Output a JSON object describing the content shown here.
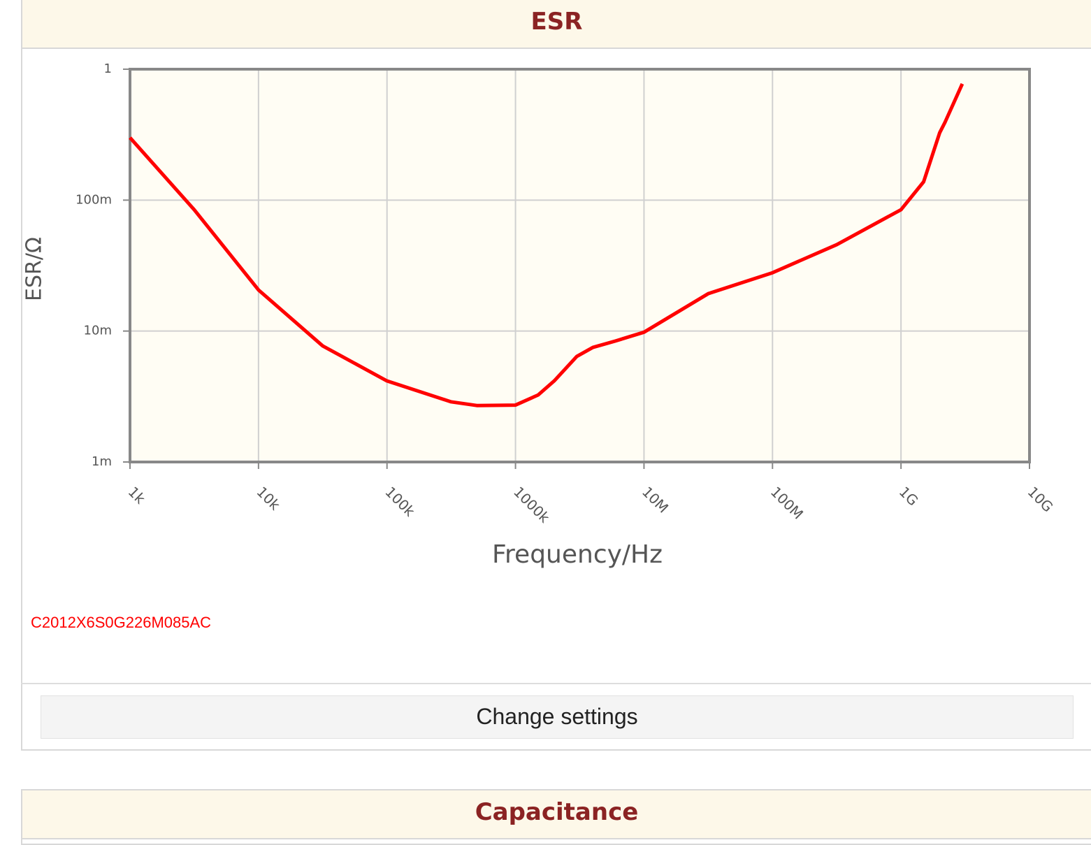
{
  "panel_title": "ESR",
  "chart_data": {
    "type": "line",
    "xlabel": "Frequency/Hz",
    "ylabel": "ESR/Ω",
    "xscale": "log",
    "yscale": "log",
    "grid": true,
    "xlim": [
      1000,
      10000000000
    ],
    "ylim": [
      0.001,
      1
    ],
    "xticks": [
      {
        "value": 1000,
        "label": "1k"
      },
      {
        "value": 10000,
        "label": "10k"
      },
      {
        "value": 100000,
        "label": "100k"
      },
      {
        "value": 1000000,
        "label": "1000k"
      },
      {
        "value": 10000000,
        "label": "10M"
      },
      {
        "value": 100000000,
        "label": "100M"
      },
      {
        "value": 1000000000,
        "label": "1G"
      },
      {
        "value": 10000000000,
        "label": "10G"
      }
    ],
    "yticks": [
      {
        "value": 0.001,
        "label": "1m"
      },
      {
        "value": 0.01,
        "label": "10m"
      },
      {
        "value": 0.1,
        "label": "100m"
      },
      1
    ],
    "x": [
      1000,
      3160,
      10000,
      31600,
      100000,
      316000,
      500000,
      1000000,
      1500000,
      2000000,
      3000000,
      4000000,
      6000000,
      10000000,
      31600000,
      100000000,
      316000000,
      1000000000,
      1500000000,
      2000000000,
      2200000000,
      3000000000
    ],
    "series": [
      {
        "name": "C2012X6S0G226M085AC",
        "color": "#ff0000",
        "values": [
          0.3,
          0.0845,
          0.0206,
          0.0077,
          0.00416,
          0.00288,
          0.0027,
          0.00272,
          0.00325,
          0.00416,
          0.0064,
          0.0075,
          0.0084,
          0.0098,
          0.0193,
          0.0279,
          0.0457,
          0.0845,
          0.138,
          0.327,
          0.393,
          0.773
        ]
      }
    ]
  },
  "button": "Change settings",
  "next_panel_title": "Capacitance"
}
